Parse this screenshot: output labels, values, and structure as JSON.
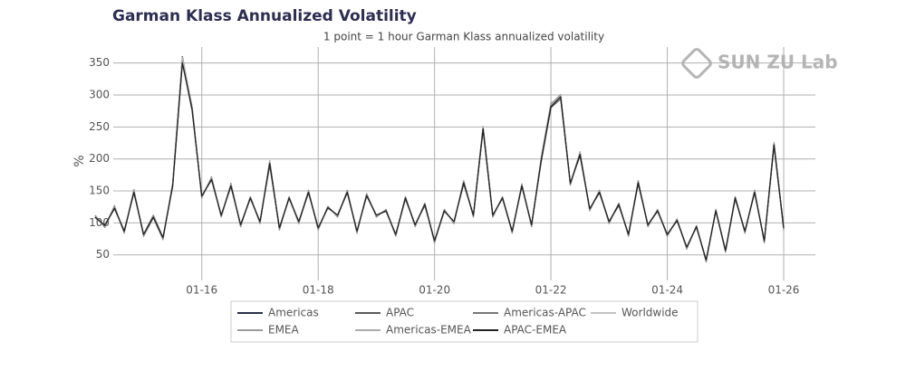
{
  "chart_data": {
    "type": "line",
    "title": "Garman Klass Annualized Volatility",
    "subtitle": "1 point = 1 hour Garman Klass annualized volatility",
    "watermark": "SUN ZU Lab",
    "y_label": "%",
    "categories": [
      null,
      null,
      null,
      null,
      null,
      null,
      null,
      null,
      null,
      null,
      null,
      "01-16",
      null,
      null,
      null,
      null,
      null,
      null,
      null,
      null,
      null,
      null,
      null,
      "01-18",
      null,
      null,
      null,
      null,
      null,
      null,
      null,
      null,
      null,
      null,
      null,
      "01-20",
      null,
      null,
      null,
      null,
      null,
      null,
      null,
      null,
      null,
      null,
      null,
      "01-22",
      null,
      null,
      null,
      null,
      null,
      null,
      null,
      null,
      null,
      null,
      null,
      "01-24",
      null,
      null,
      null,
      null,
      null,
      null,
      null,
      null,
      null,
      null,
      null,
      "01-26"
    ],
    "ylim": [
      10,
      375
    ],
    "yticks": [
      50,
      100,
      150,
      200,
      250,
      300,
      350
    ],
    "grid": true,
    "legend": "bottom",
    "series": [
      {
        "name": "Americas",
        "color": "#2b2f4a",
        "values": [
          110,
          95,
          125,
          85,
          150,
          80,
          110,
          75,
          160,
          360,
          280,
          140,
          170,
          110,
          160,
          95,
          140,
          100,
          195,
          90,
          140,
          100,
          150,
          90,
          125,
          110,
          150,
          85,
          145,
          110,
          120,
          80,
          140,
          95,
          130,
          70,
          120,
          100,
          165,
          110,
          250,
          110,
          140,
          85,
          160,
          95,
          200,
          285,
          300,
          160,
          210,
          120,
          150,
          100,
          130,
          80,
          165,
          95,
          120,
          80,
          105,
          60,
          95,
          40,
          120,
          55,
          140,
          85,
          150,
          70,
          225,
          90
        ]
      },
      {
        "name": "APAC",
        "color": "#5a5a5a",
        "values": [
          108,
          97,
          122,
          88,
          147,
          82,
          112,
          77,
          157,
          352,
          276,
          142,
          167,
          112,
          157,
          97,
          138,
          102,
          190,
          92,
          138,
          102,
          147,
          92,
          123,
          112,
          147,
          87,
          142,
          112,
          118,
          82,
          137,
          97,
          127,
          72,
          118,
          102,
          161,
          112,
          245,
          112,
          138,
          87,
          157,
          97,
          196,
          280,
          294,
          162,
          205,
          122,
          147,
          102,
          127,
          82,
          161,
          97,
          118,
          82,
          103,
          62,
          93,
          42,
          118,
          57,
          137,
          87,
          147,
          72,
          220,
          92
        ]
      },
      {
        "name": "Americas-APAC",
        "color": "#777777",
        "values": [
          112,
          93,
          127,
          84,
          152,
          79,
          108,
          74,
          162,
          356,
          282,
          139,
          172,
          109,
          162,
          94,
          141,
          99,
          197,
          89,
          141,
          99,
          151,
          89,
          126,
          109,
          151,
          84,
          146,
          109,
          121,
          79,
          141,
          94,
          131,
          69,
          121,
          99,
          166,
          109,
          248,
          109,
          141,
          84,
          161,
          94,
          202,
          287,
          298,
          159,
          211,
          119,
          151,
          99,
          131,
          79,
          166,
          94,
          121,
          79,
          106,
          59,
          96,
          39,
          121,
          54,
          141,
          84,
          151,
          69,
          223,
          89
        ]
      },
      {
        "name": "Worldwide",
        "color": "#c2c2c2",
        "values": [
          110,
          96,
          124,
          86,
          149,
          81,
          110,
          76,
          159,
          358,
          279,
          141,
          169,
          111,
          159,
          96,
          139,
          101,
          194,
          91,
          139,
          101,
          149,
          91,
          124,
          111,
          149,
          86,
          144,
          111,
          119,
          81,
          139,
          96,
          129,
          71,
          119,
          101,
          164,
          111,
          249,
          111,
          139,
          86,
          159,
          96,
          199,
          284,
          299,
          161,
          209,
          121,
          149,
          101,
          129,
          81,
          164,
          96,
          119,
          81,
          104,
          61,
          94,
          41,
          119,
          56,
          139,
          86,
          149,
          71,
          224,
          91
        ]
      },
      {
        "name": "EMEA",
        "color": "#9a9a9a",
        "values": [
          109,
          94,
          126,
          85,
          151,
          80,
          111,
          75,
          161,
          355,
          281,
          140,
          171,
          110,
          161,
          95,
          140,
          100,
          196,
          90,
          140,
          100,
          150,
          90,
          125,
          110,
          150,
          85,
          145,
          110,
          120,
          80,
          140,
          95,
          130,
          70,
          120,
          100,
          165,
          110,
          251,
          110,
          140,
          85,
          160,
          95,
          201,
          286,
          301,
          160,
          210,
          120,
          150,
          100,
          130,
          80,
          165,
          95,
          120,
          80,
          105,
          60,
          95,
          40,
          120,
          55,
          140,
          85,
          150,
          70,
          226,
          90
        ]
      },
      {
        "name": "Americas-EMEA",
        "color": "#adadad",
        "values": [
          111,
          95,
          125,
          86,
          150,
          81,
          110,
          76,
          160,
          359,
          280,
          141,
          170,
          111,
          160,
          96,
          140,
          101,
          195,
          91,
          140,
          101,
          150,
          91,
          125,
          111,
          150,
          86,
          145,
          111,
          120,
          81,
          140,
          96,
          130,
          71,
          120,
          101,
          165,
          111,
          250,
          111,
          140,
          86,
          160,
          96,
          200,
          285,
          300,
          161,
          210,
          121,
          150,
          101,
          130,
          81,
          165,
          96,
          120,
          81,
          105,
          61,
          95,
          41,
          120,
          56,
          140,
          86,
          150,
          71,
          225,
          91
        ]
      },
      {
        "name": "APAC-EMEA",
        "color": "#222222",
        "values": [
          109,
          96,
          123,
          87,
          148,
          82,
          109,
          77,
          158,
          350,
          278,
          142,
          168,
          112,
          158,
          97,
          139,
          102,
          193,
          92,
          139,
          102,
          148,
          92,
          124,
          112,
          148,
          87,
          143,
          112,
          119,
          82,
          139,
          97,
          129,
          72,
          119,
          102,
          163,
          112,
          247,
          112,
          139,
          87,
          158,
          97,
          198,
          282,
          297,
          162,
          207,
          122,
          148,
          102,
          129,
          82,
          163,
          97,
          119,
          82,
          104,
          62,
          94,
          42,
          119,
          57,
          139,
          87,
          148,
          72,
          222,
          92
        ]
      }
    ]
  }
}
